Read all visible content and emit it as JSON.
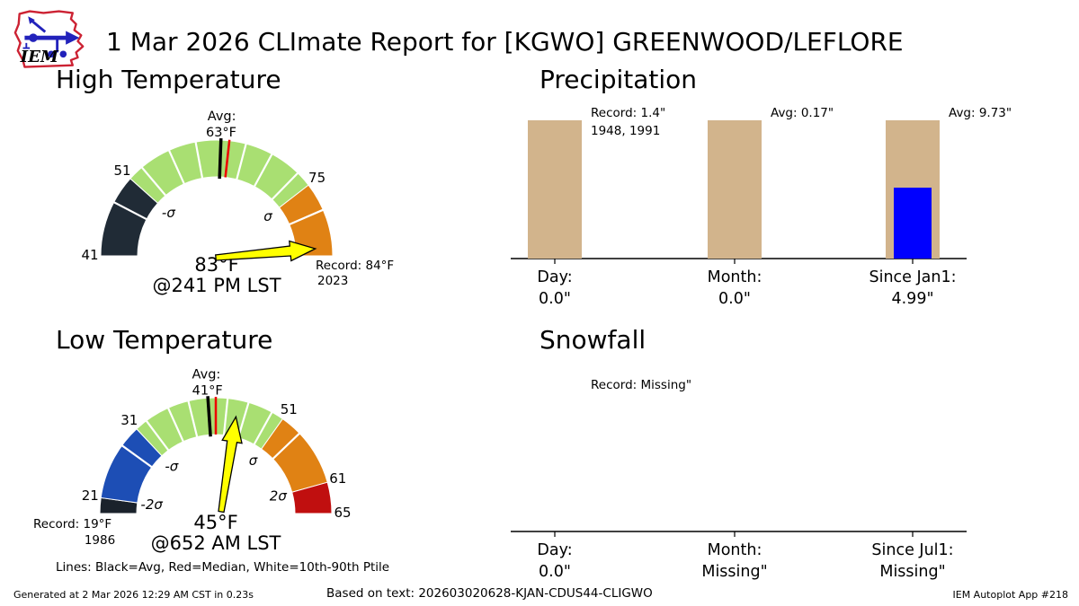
{
  "header": {
    "title": "1 Mar 2026 CLImate Report for [KGWO] GREENWOOD/LEFLORE",
    "logo_text": "IEM"
  },
  "sections": {
    "high_temp": {
      "title": "High Temperature"
    },
    "precip": {
      "title": "Precipitation"
    },
    "low_temp": {
      "title": "Low Temperature",
      "caption": "Lines: Black=Avg, Red=Median, White=10th-90th Ptile"
    },
    "snowfall": {
      "title": "Snowfall"
    }
  },
  "footer": {
    "generated": "Generated at 2 Mar 2026 12:29 AM CST in 0.23s",
    "based_on": "Based on text: 202603020628-KJAN-CDUS44-CLIGWO",
    "app": "IEM Autoplot App #218"
  },
  "colors": {
    "climo_tan": "#d2b48c",
    "observed_blue": "#0000ff",
    "needle_yellow": "#ffff00",
    "avg_black": "#000000",
    "median_red": "#ee0000",
    "logo_red": "#cc2233",
    "logo_blue": "#2222bb"
  },
  "chart_data": [
    {
      "type": "gauge",
      "title": "High Temperature",
      "min": 41,
      "max": 84,
      "avg": 63,
      "median": 64,
      "value": 83,
      "value_label": "83°F",
      "time_label": "@241 PM LST",
      "avg_label_lines": [
        "Avg:",
        "63°F"
      ],
      "record": 84,
      "record_label": "Record: 84°F",
      "record_years": "2023",
      "record_side": "right",
      "deciles": [
        47.6,
        52.9,
        56.7,
        60,
        66,
        69.3,
        73.1,
        78.4
      ],
      "segments": [
        {
          "from": 41,
          "to": 51,
          "color": "#202b36"
        },
        {
          "from": 51,
          "to": 75,
          "color": "#a9df72"
        },
        {
          "from": 75,
          "to": 84,
          "color": "#e08214"
        }
      ],
      "tick_labels": [
        {
          "value": 41,
          "text": "41"
        },
        {
          "value": 51,
          "text": "51"
        },
        {
          "value": 75,
          "text": "75"
        }
      ],
      "sigma_labels": [
        {
          "value": 51,
          "text": "-σ"
        },
        {
          "value": 75,
          "text": "σ"
        }
      ]
    },
    {
      "type": "bar",
      "title": "Precipitation",
      "categories": [
        "Day:",
        "Month:",
        "Since Jan1:"
      ],
      "observed": [
        0.0,
        0.0,
        4.99
      ],
      "observed_labels": [
        "0.0\"",
        "0.0\"",
        "4.99\""
      ],
      "climo": [
        1.4,
        0.17,
        9.73
      ],
      "annotations": [
        [
          "Record: 1.4\"",
          "1948, 1991"
        ],
        [
          "Avg: 0.17\""
        ],
        [
          "Avg: 9.73\""
        ]
      ],
      "climo_color": "#d2b48c",
      "observed_color": "#0000ff"
    },
    {
      "type": "gauge",
      "title": "Low Temperature",
      "min": 19,
      "max": 65,
      "avg": 41,
      "median": 42,
      "value": 45,
      "value_label": "45°F",
      "time_label": "@652 AM LST",
      "avg_label_lines": [
        "Avg:",
        "41°F"
      ],
      "record": 19,
      "record_label": "Record: 19°F",
      "record_years": "1986",
      "record_side": "left",
      "deciles": [
        28.2,
        32.6,
        35.8,
        38.5,
        43.5,
        46.2,
        49.4,
        53.8
      ],
      "segments": [
        {
          "from": 19,
          "to": 21,
          "color": "#1a222b"
        },
        {
          "from": 21,
          "to": 31,
          "color": "#1d4eb5"
        },
        {
          "from": 31,
          "to": 51,
          "color": "#a9df72"
        },
        {
          "from": 51,
          "to": 61,
          "color": "#e08214"
        },
        {
          "from": 61,
          "to": 65,
          "color": "#c00f0f"
        }
      ],
      "tick_labels": [
        {
          "value": 21,
          "text": "21"
        },
        {
          "value": 31,
          "text": "31"
        },
        {
          "value": 51,
          "text": "51"
        },
        {
          "value": 61,
          "text": "61"
        },
        {
          "value": 65,
          "text": "65"
        }
      ],
      "sigma_labels": [
        {
          "value": 21,
          "text": "-2σ"
        },
        {
          "value": 31,
          "text": "-σ"
        },
        {
          "value": 51,
          "text": "σ"
        },
        {
          "value": 61,
          "text": "2σ"
        }
      ]
    },
    {
      "type": "bar",
      "title": "Snowfall",
      "categories": [
        "Day:",
        "Month:",
        "Since Jul1:"
      ],
      "observed": [
        0.0,
        null,
        null
      ],
      "observed_labels": [
        "0.0\"",
        "Missing\"",
        "Missing\""
      ],
      "climo": [
        null,
        null,
        null
      ],
      "annotations": [
        [
          "Record: Missing\""
        ],
        [],
        []
      ],
      "climo_color": "#d2b48c",
      "observed_color": "#0000ff"
    }
  ]
}
